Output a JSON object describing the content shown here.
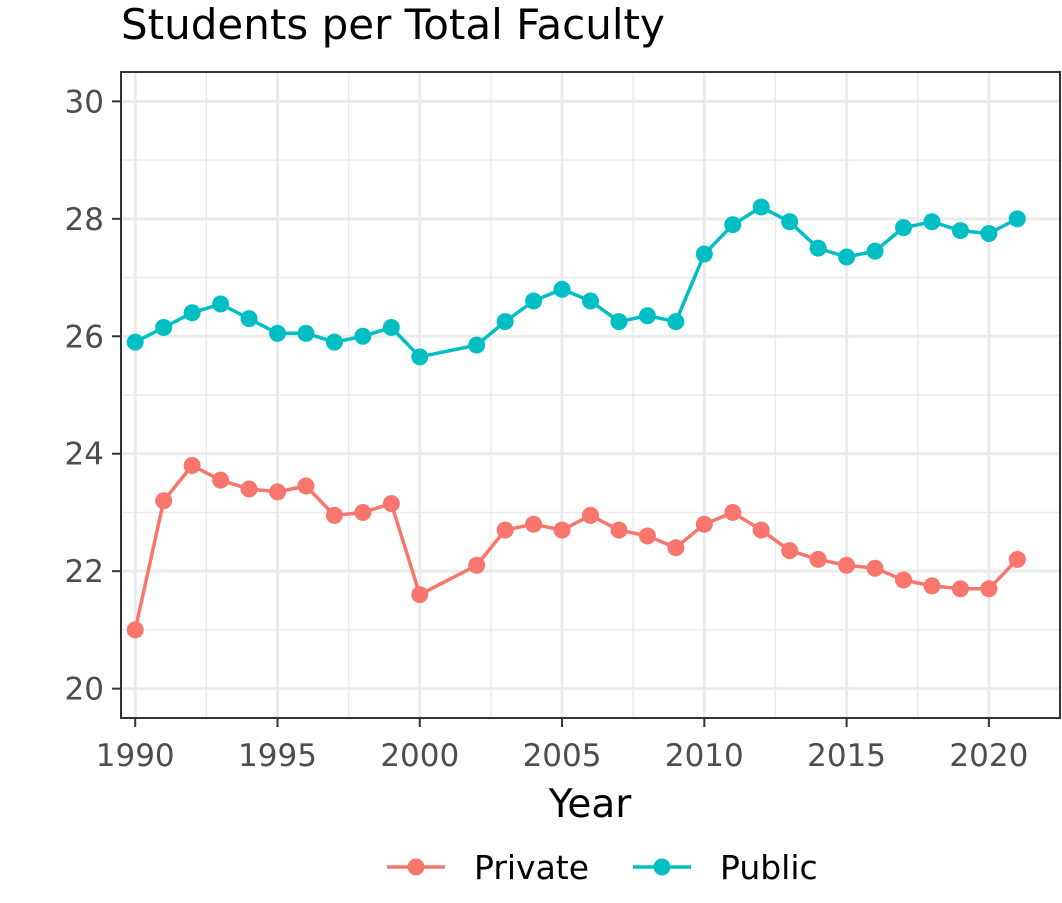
{
  "chart_data": {
    "type": "line",
    "title": "Students per Total Faculty",
    "xlabel": "Year",
    "ylabel": "",
    "xlim": [
      1989.5,
      2022.5
    ],
    "ylim": [
      19.5,
      30.5
    ],
    "xticks": [
      1990,
      1995,
      2000,
      2005,
      2010,
      2015,
      2020
    ],
    "yticks": [
      20,
      22,
      24,
      26,
      28,
      30
    ],
    "grid": true,
    "legend_position": "bottom",
    "series": [
      {
        "name": "Private",
        "color": "#F8766D",
        "x": [
          1990,
          1991,
          1992,
          1993,
          1994,
          1995,
          1996,
          1997,
          1998,
          1999,
          2000,
          2002,
          2003,
          2004,
          2005,
          2006,
          2007,
          2008,
          2009,
          2010,
          2011,
          2012,
          2013,
          2014,
          2015,
          2016,
          2017,
          2018,
          2019,
          2020,
          2021
        ],
        "y": [
          21.0,
          23.2,
          23.8,
          23.55,
          23.4,
          23.35,
          23.45,
          22.95,
          23.0,
          23.15,
          21.6,
          22.1,
          22.7,
          22.8,
          22.7,
          22.95,
          22.7,
          22.6,
          22.4,
          22.8,
          23.0,
          22.7,
          22.35,
          22.2,
          22.1,
          22.05,
          21.85,
          21.75,
          21.7,
          21.7,
          22.2
        ]
      },
      {
        "name": "Public",
        "color": "#00BFC4",
        "x": [
          1990,
          1991,
          1992,
          1993,
          1994,
          1995,
          1996,
          1997,
          1998,
          1999,
          2000,
          2002,
          2003,
          2004,
          2005,
          2006,
          2007,
          2008,
          2009,
          2010,
          2011,
          2012,
          2013,
          2014,
          2015,
          2016,
          2017,
          2018,
          2019,
          2020,
          2021
        ],
        "y": [
          25.9,
          26.15,
          26.4,
          26.55,
          26.3,
          26.05,
          26.05,
          25.9,
          26.0,
          26.15,
          25.65,
          25.85,
          26.25,
          26.6,
          26.8,
          26.6,
          26.25,
          26.35,
          26.25,
          27.4,
          27.9,
          28.2,
          27.95,
          27.5,
          27.35,
          27.45,
          27.85,
          27.95,
          27.8,
          27.75,
          28.0
        ]
      }
    ]
  }
}
